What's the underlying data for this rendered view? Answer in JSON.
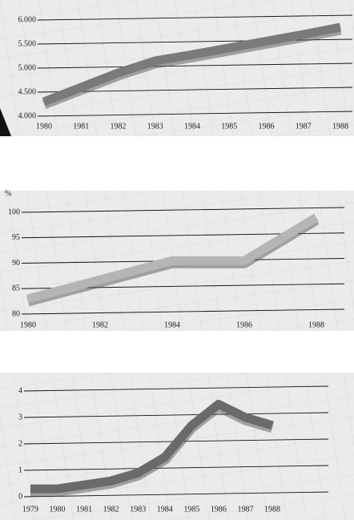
{
  "chart_data": [
    {
      "type": "line",
      "x": [
        1980,
        1981,
        1982,
        1983,
        1984,
        1985,
        1986,
        1987,
        1988
      ],
      "series": [
        {
          "color": "#7a7a7a",
          "values": [
            4300,
            4600,
            4900,
            5150,
            5280,
            5420,
            5560,
            5700,
            5850
          ]
        }
      ],
      "xlim": [
        1980,
        1988
      ],
      "xticks": [
        1980,
        1981,
        1982,
        1983,
        1984,
        1985,
        1986,
        1987,
        1988
      ],
      "ylim": [
        4000,
        6000
      ],
      "yticks": [
        {
          "value": 4000,
          "label": "4.000"
        },
        {
          "value": 4500,
          "label": "4.500"
        },
        {
          "value": 5000,
          "label": "5.000"
        },
        {
          "value": 5500,
          "label": "5.500"
        },
        {
          "value": 6000,
          "label": "6.000"
        }
      ],
      "grid": true
    },
    {
      "type": "line",
      "y_label": "%",
      "x": [
        1980,
        1984,
        1986,
        1988
      ],
      "series": [
        {
          "color": "#b5b5b5",
          "values": [
            83,
            90.5,
            90.5,
            99
          ]
        }
      ],
      "xlim": [
        1980,
        1988
      ],
      "xticks": [
        1980,
        1982,
        1984,
        1986,
        1988
      ],
      "ylim": [
        80,
        100
      ],
      "yticks": [
        80,
        85,
        90,
        95,
        100
      ],
      "grid": true
    },
    {
      "type": "line",
      "x": [
        1979,
        1980,
        1981,
        1982,
        1983,
        1984,
        1985,
        1986,
        1987,
        1988
      ],
      "series": [
        {
          "color": "#6a6a6a",
          "values": [
            0.3,
            0.3,
            0.45,
            0.6,
            0.9,
            1.5,
            2.7,
            3.5,
            3.0,
            2.7
          ]
        }
      ],
      "xlim": [
        1979,
        1988
      ],
      "xticks": [
        1979,
        1980,
        1981,
        1982,
        1983,
        1984,
        1985,
        1986,
        1987,
        1988
      ],
      "ylim": [
        0,
        4
      ],
      "yticks": [
        0,
        1,
        2,
        3,
        4
      ],
      "grid": true
    }
  ]
}
